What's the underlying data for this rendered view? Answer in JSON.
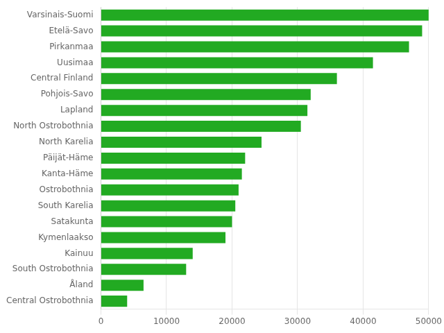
{
  "chart_data": {
    "type": "bar",
    "orientation": "horizontal",
    "categories": [
      "Central Ostrobothnia",
      "Åland",
      "South Ostrobothnia",
      "Kainuu",
      "Kymenlaakso",
      "Satakunta",
      "South Karelia",
      "Ostrobothnia",
      "Kanta-Häme",
      "Päijät-Häme",
      "North Karelia",
      "North Ostrobothnia",
      "Lapland",
      "Pohjois-Savo",
      "Central Finland",
      "Uusimaa",
      "Pirkanmaa",
      "Etelä-Savo",
      "Varsinais-Suomi"
    ],
    "values": [
      4000,
      6500,
      13000,
      14000,
      19000,
      20000,
      20500,
      21000,
      21500,
      22000,
      24500,
      30500,
      31500,
      32000,
      36000,
      41500,
      47000,
      49000,
      50000
    ],
    "color": "#22aa22",
    "xlim": [
      0,
      50000
    ],
    "xticks": [
      0,
      10000,
      20000,
      30000,
      40000,
      50000
    ],
    "grid": true
  }
}
